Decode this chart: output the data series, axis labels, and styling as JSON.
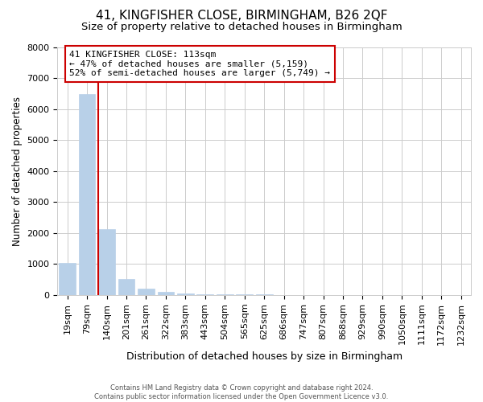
{
  "title": "41, KINGFISHER CLOSE, BIRMINGHAM, B26 2QF",
  "subtitle": "Size of property relative to detached houses in Birmingham",
  "xlabel": "Distribution of detached houses by size in Birmingham",
  "ylabel": "Number of detached properties",
  "annotation_text": "41 KINGFISHER CLOSE: 113sqm\n← 47% of detached houses are smaller (5,159)\n52% of semi-detached houses are larger (5,749) →",
  "footer1": "Contains HM Land Registry data © Crown copyright and database right 2024.",
  "footer2": "Contains public sector information licensed under the Open Government Licence v3.0.",
  "categories": [
    "19sqm",
    "79sqm",
    "140sqm",
    "201sqm",
    "261sqm",
    "322sqm",
    "383sqm",
    "443sqm",
    "504sqm",
    "565sqm",
    "625sqm",
    "686sqm",
    "747sqm",
    "807sqm",
    "868sqm",
    "929sqm",
    "990sqm",
    "1050sqm",
    "1111sqm",
    "1172sqm",
    "1232sqm"
  ],
  "values": [
    1050,
    6490,
    2120,
    530,
    200,
    90,
    55,
    35,
    25,
    18,
    14,
    11,
    9,
    7,
    6,
    5,
    4,
    3,
    2,
    1,
    1
  ],
  "bar_color": "#b8d0e8",
  "bar_edge_color": "#b8d0e8",
  "redline_x": 1.55,
  "ylim": [
    0,
    8000
  ],
  "yticks": [
    0,
    1000,
    2000,
    3000,
    4000,
    5000,
    6000,
    7000,
    8000
  ],
  "title_fontsize": 11,
  "subtitle_fontsize": 9.5,
  "ylabel_fontsize": 8.5,
  "xlabel_fontsize": 9,
  "tick_fontsize": 8,
  "annotation_fontsize": 8,
  "annotation_box_color": "#cc0000",
  "redline_color": "#cc0000",
  "background_color": "#ffffff",
  "grid_color": "#cccccc",
  "footer_fontsize": 6,
  "footer_color": "#555555"
}
